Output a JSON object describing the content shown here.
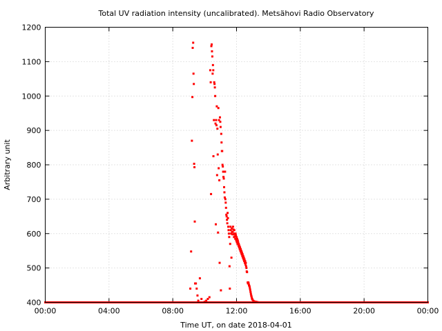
{
  "chart_data": {
    "type": "scatter",
    "title": "Total UV radiation intensity (uncalibrated). Metsähovi Radio Observatory",
    "xlabel": "Time UT, on date 2018-04-01",
    "ylabel": "Arbitrary unit",
    "xlim": [
      0,
      24
    ],
    "ylim": [
      400,
      1200
    ],
    "x_ticks": [
      0,
      4,
      8,
      12,
      16,
      20,
      24
    ],
    "x_tick_labels": [
      "00:00",
      "04:00",
      "08:00",
      "12:00",
      "16:00",
      "20:00",
      "00:00"
    ],
    "y_ticks": [
      400,
      500,
      600,
      700,
      800,
      900,
      1000,
      1100,
      1200
    ],
    "y_tick_labels": [
      "400",
      "500",
      "600",
      "700",
      "800",
      "900",
      "1000",
      "1100",
      "1200"
    ],
    "grid": true,
    "series_color": "#ff0000",
    "baseline": {
      "y": 400,
      "x_start": 0,
      "x_end": 24,
      "step": 0.1
    },
    "points": [
      [
        9.1,
        440
      ],
      [
        9.15,
        548
      ],
      [
        9.2,
        870
      ],
      [
        9.23,
        997
      ],
      [
        9.25,
        1140
      ],
      [
        9.28,
        1155
      ],
      [
        9.3,
        1065
      ],
      [
        9.32,
        1035
      ],
      [
        9.34,
        803
      ],
      [
        9.36,
        793
      ],
      [
        9.38,
        635
      ],
      [
        9.4,
        455
      ],
      [
        9.45,
        455
      ],
      [
        9.5,
        440
      ],
      [
        9.55,
        420
      ],
      [
        9.6,
        405
      ],
      [
        9.7,
        470
      ],
      [
        9.8,
        410
      ],
      [
        10.0,
        402
      ],
      [
        10.1,
        405
      ],
      [
        10.2,
        410
      ],
      [
        10.3,
        415
      ],
      [
        10.35,
        1075
      ],
      [
        10.38,
        1040
      ],
      [
        10.4,
        715
      ],
      [
        10.42,
        1145
      ],
      [
        10.44,
        1150
      ],
      [
        10.46,
        1130
      ],
      [
        10.48,
        1115
      ],
      [
        10.5,
        1065
      ],
      [
        10.52,
        1090
      ],
      [
        10.54,
        1075
      ],
      [
        10.55,
        825
      ],
      [
        10.58,
        930
      ],
      [
        10.6,
        1040
      ],
      [
        10.62,
        1035
      ],
      [
        10.64,
        1025
      ],
      [
        10.66,
        1000
      ],
      [
        10.68,
        920
      ],
      [
        10.7,
        627
      ],
      [
        10.72,
        930
      ],
      [
        10.74,
        915
      ],
      [
        10.76,
        970
      ],
      [
        10.78,
        770
      ],
      [
        10.8,
        905
      ],
      [
        10.82,
        830
      ],
      [
        10.84,
        603
      ],
      [
        10.86,
        965
      ],
      [
        10.88,
        790
      ],
      [
        10.9,
        930
      ],
      [
        10.92,
        755
      ],
      [
        10.94,
        515
      ],
      [
        10.96,
        938
      ],
      [
        10.98,
        925
      ],
      [
        11.0,
        910
      ],
      [
        11.02,
        435
      ],
      [
        11.04,
        890
      ],
      [
        11.06,
        865
      ],
      [
        11.08,
        840
      ],
      [
        11.1,
        840
      ],
      [
        11.12,
        800
      ],
      [
        11.14,
        795
      ],
      [
        11.16,
        780
      ],
      [
        11.18,
        765
      ],
      [
        11.2,
        760
      ],
      [
        11.22,
        735
      ],
      [
        11.24,
        720
      ],
      [
        11.26,
        705
      ],
      [
        11.28,
        780
      ],
      [
        11.3,
        700
      ],
      [
        11.32,
        690
      ],
      [
        11.34,
        675
      ],
      [
        11.36,
        655
      ],
      [
        11.38,
        650
      ],
      [
        11.4,
        640
      ],
      [
        11.42,
        630
      ],
      [
        11.44,
        660
      ],
      [
        11.46,
        645
      ],
      [
        11.48,
        620
      ],
      [
        11.5,
        610
      ],
      [
        11.52,
        600
      ],
      [
        11.54,
        590
      ],
      [
        11.56,
        505
      ],
      [
        11.58,
        440
      ],
      [
        11.6,
        570
      ],
      [
        11.62,
        620
      ],
      [
        11.64,
        610
      ],
      [
        11.66,
        600
      ],
      [
        11.68,
        530
      ],
      [
        11.7,
        615
      ],
      [
        11.72,
        605
      ],
      [
        11.74,
        598
      ],
      [
        11.76,
        605
      ],
      [
        11.78,
        620
      ],
      [
        11.8,
        612
      ],
      [
        11.82,
        598
      ],
      [
        11.84,
        590
      ],
      [
        11.86,
        610
      ],
      [
        11.88,
        600
      ],
      [
        11.9,
        592
      ],
      [
        11.92,
        585
      ],
      [
        11.94,
        600
      ],
      [
        11.96,
        595
      ],
      [
        11.98,
        580
      ],
      [
        12.0,
        590
      ],
      [
        12.02,
        575
      ],
      [
        12.04,
        585
      ],
      [
        12.06,
        570
      ],
      [
        12.08,
        580
      ],
      [
        12.1,
        575
      ],
      [
        12.12,
        565
      ],
      [
        12.14,
        570
      ],
      [
        12.16,
        560
      ],
      [
        12.18,
        565
      ],
      [
        12.2,
        555
      ],
      [
        12.22,
        560
      ],
      [
        12.24,
        550
      ],
      [
        12.26,
        555
      ],
      [
        12.28,
        545
      ],
      [
        12.3,
        550
      ],
      [
        12.32,
        540
      ],
      [
        12.34,
        545
      ],
      [
        12.36,
        535
      ],
      [
        12.38,
        540
      ],
      [
        12.4,
        530
      ],
      [
        12.42,
        535
      ],
      [
        12.44,
        525
      ],
      [
        12.46,
        530
      ],
      [
        12.48,
        520
      ],
      [
        12.5,
        525
      ],
      [
        12.52,
        515
      ],
      [
        12.54,
        520
      ],
      [
        12.56,
        510
      ],
      [
        12.58,
        515
      ],
      [
        12.6,
        505
      ],
      [
        12.62,
        500
      ],
      [
        12.64,
        490
      ],
      [
        12.66,
        488
      ],
      [
        12.7,
        458
      ],
      [
        12.72,
        455
      ],
      [
        12.74,
        458
      ],
      [
        12.76,
        455
      ],
      [
        12.78,
        450
      ],
      [
        12.8,
        448
      ],
      [
        12.82,
        445
      ],
      [
        12.84,
        440
      ],
      [
        12.86,
        435
      ],
      [
        12.88,
        430
      ],
      [
        12.9,
        425
      ],
      [
        12.92,
        420
      ],
      [
        12.94,
        417
      ],
      [
        12.96,
        413
      ],
      [
        12.98,
        410
      ],
      [
        13.0,
        408
      ],
      [
        13.05,
        405
      ],
      [
        13.1,
        403
      ],
      [
        13.2,
        402
      ],
      [
        13.3,
        401
      ],
      [
        13.5,
        400
      ]
    ]
  }
}
